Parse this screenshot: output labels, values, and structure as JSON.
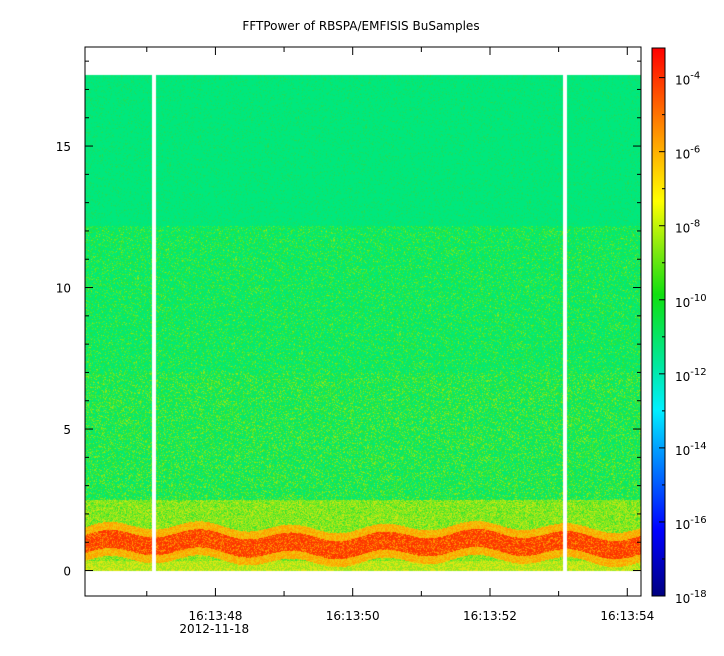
{
  "chart_data": {
    "type": "heatmap",
    "title": "FFTPower of RBSPA/EMFISIS  BuSamples",
    "xlabel": "",
    "ylabel": "",
    "x_ticks": [
      "16:13:48",
      "16:13:50",
      "16:13:52",
      "16:13:54"
    ],
    "x_ticks_seconds": [
      48,
      50,
      52,
      54
    ],
    "x_range_seconds": [
      46.1,
      54.2
    ],
    "x_sub_label": "2012-11-18",
    "y_ticks": [
      "0",
      "5",
      "10",
      "15"
    ],
    "y_ticks_values": [
      0,
      5,
      10,
      15
    ],
    "y_range": [
      -0.9,
      18.5
    ],
    "data_y_max": 17.5,
    "colorbar": {
      "scale": "log",
      "range_exponent": [
        -18,
        -3.2
      ],
      "ticks": [
        {
          "base": "10",
          "exp": "-4",
          "value": -4
        },
        {
          "base": "10",
          "exp": "-6",
          "value": -6
        },
        {
          "base": "10",
          "exp": "-8",
          "value": -8
        },
        {
          "base": "10",
          "exp": "-10",
          "value": -10
        },
        {
          "base": "10",
          "exp": "-12",
          "value": -12
        },
        {
          "base": "10",
          "exp": "-14",
          "value": -14
        },
        {
          "base": "10",
          "exp": "-16",
          "value": -16
        },
        {
          "base": "10",
          "exp": "-18",
          "value": -18
        }
      ]
    },
    "data_gaps_seconds": [
      47.1,
      53.1
    ],
    "colors": {
      "upper_band": "#00e676",
      "middle_band": "#2ee02e",
      "lower_band": "#9ee814",
      "emission_band": "#ff3a00",
      "emission_edge": "#ffb000"
    }
  }
}
